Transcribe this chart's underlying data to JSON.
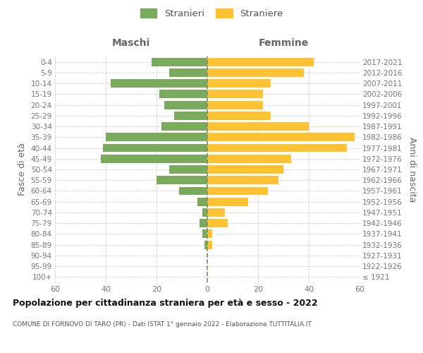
{
  "age_groups": [
    "100+",
    "95-99",
    "90-94",
    "85-89",
    "80-84",
    "75-79",
    "70-74",
    "65-69",
    "60-64",
    "55-59",
    "50-54",
    "45-49",
    "40-44",
    "35-39",
    "30-34",
    "25-29",
    "20-24",
    "15-19",
    "10-14",
    "5-9",
    "0-4"
  ],
  "birth_years": [
    "≤ 1921",
    "1922-1926",
    "1927-1931",
    "1932-1936",
    "1937-1941",
    "1942-1946",
    "1947-1951",
    "1952-1956",
    "1957-1961",
    "1962-1966",
    "1967-1971",
    "1972-1976",
    "1977-1981",
    "1982-1986",
    "1987-1991",
    "1992-1996",
    "1997-2001",
    "2002-2006",
    "2007-2011",
    "2012-2016",
    "2017-2021"
  ],
  "males": [
    0,
    0,
    0,
    1,
    2,
    3,
    2,
    4,
    11,
    20,
    15,
    42,
    41,
    40,
    18,
    13,
    17,
    19,
    38,
    15,
    22
  ],
  "females": [
    0,
    0,
    0,
    2,
    2,
    8,
    7,
    16,
    24,
    28,
    30,
    33,
    55,
    58,
    40,
    25,
    22,
    22,
    25,
    38,
    42
  ],
  "male_color": "#7aaa5c",
  "female_color": "#ffc233",
  "male_label": "Stranieri",
  "female_label": "Straniere",
  "title": "Popolazione per cittadinanza straniera per età e sesso - 2022",
  "subtitle": "COMUNE DI FORNOVO DI TARO (PR) - Dati ISTAT 1° gennaio 2022 - Elaborazione TUTTITALIA.IT",
  "xlabel_left": "Maschi",
  "xlabel_right": "Femmine",
  "ylabel_left": "Fasce di età",
  "ylabel_right": "Anni di nascita",
  "xlim": 60,
  "background_color": "#ffffff",
  "grid_color": "#d0d0d0",
  "legend_marker_color_male": "#6a9e50",
  "legend_marker_color_female": "#ffc233"
}
